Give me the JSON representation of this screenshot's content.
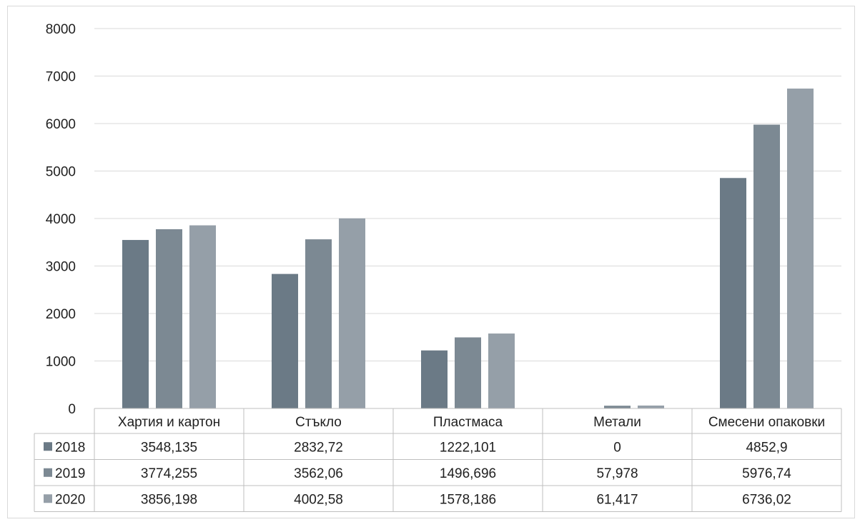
{
  "chart_data": {
    "type": "bar",
    "categories": [
      "Хартия и картон",
      "Стъкло",
      "Пластмаса",
      "Метали",
      "Смесени опаковки"
    ],
    "series": [
      {
        "name": "2018",
        "color": "#6b7a86",
        "values": [
          3548.135,
          2832.72,
          1222.101,
          0,
          4852.9
        ],
        "labels": [
          "3548,135",
          "2832,72",
          "1222,101",
          "0",
          "4852,9"
        ]
      },
      {
        "name": "2019",
        "color": "#7c8993",
        "values": [
          3774.255,
          3562.06,
          1496.696,
          57.978,
          5976.74
        ],
        "labels": [
          "3774,255",
          "3562,06",
          "1496,696",
          "57,978",
          "5976,74"
        ]
      },
      {
        "name": "2020",
        "color": "#959fa8",
        "values": [
          3856.198,
          4002.58,
          1578.186,
          61.417,
          6736.02
        ],
        "labels": [
          "3856,198",
          "4002,58",
          "1578,186",
          "61,417",
          "6736,02"
        ]
      }
    ],
    "y_ticks": [
      "0",
      "1000",
      "2000",
      "3000",
      "4000",
      "5000",
      "6000",
      "7000",
      "8000"
    ],
    "ylim": [
      0,
      8000
    ],
    "grid": true,
    "legend": "data-table"
  }
}
